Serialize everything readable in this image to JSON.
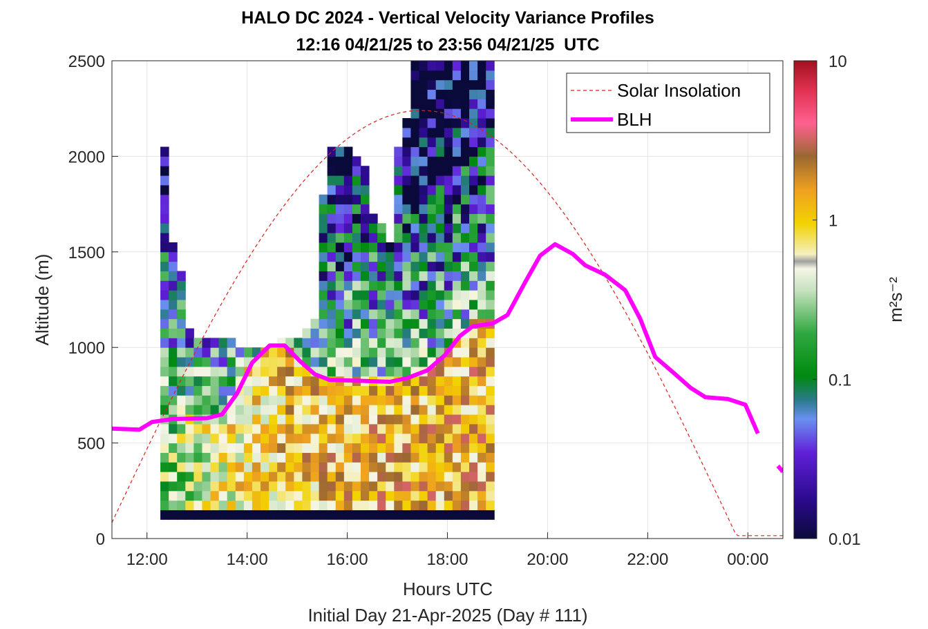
{
  "chart_data": {
    "type": "heatmap",
    "title": "HALO DC 2024 - Vertical Velocity Variance Profiles",
    "subtitle": "12:16 04/21/25 to 23:56 04/21/25  UTC",
    "xlabel": "Hours UTC",
    "xlabel2": "Initial Day 21-Apr-2025 (Day # 111)",
    "ylabel": "Altitude (m)",
    "xlim": [
      11.3,
      24.7
    ],
    "ylim": [
      0,
      2500
    ],
    "x_ticks": [
      12,
      14,
      16,
      18,
      20,
      22,
      24
    ],
    "x_tick_labels": [
      "12:00",
      "14:00",
      "16:00",
      "18:00",
      "20:00",
      "22:00",
      "00:00"
    ],
    "y_ticks": [
      0,
      500,
      1000,
      1500,
      2000,
      2500
    ],
    "y_tick_labels": [
      "0",
      "500",
      "1000",
      "1500",
      "2000",
      "2500"
    ],
    "grid": true,
    "legend_position": "top-right",
    "legend": [
      "Solar Insolation",
      "BLH"
    ],
    "colorbar": {
      "label": "m²s⁻²",
      "scale": "log",
      "range": [
        0.01,
        10
      ],
      "tick_labels": [
        "0.01",
        "0.1",
        "1",
        "10"
      ],
      "tick_values": [
        0.01,
        0.1,
        1,
        10
      ]
    },
    "grid_cells": {
      "x_start_hours": 12.267,
      "x_step_hours": 0.1667,
      "y_step_m": 50,
      "columns": [
        {
          "bottom": 100,
          "top": 2050
        },
        {
          "bottom": 100,
          "top": 1550
        },
        {
          "bottom": 100,
          "top": 1400
        },
        {
          "bottom": 100,
          "top": 1100
        },
        {
          "bottom": 100,
          "top": 1050
        },
        {
          "bottom": 100,
          "top": 1050
        },
        {
          "bottom": 100,
          "top": 1050
        },
        {
          "bottom": 100,
          "top": 1050
        },
        {
          "bottom": 100,
          "top": 1050
        },
        {
          "bottom": 100,
          "top": 1000
        },
        {
          "bottom": 100,
          "top": 1000
        },
        {
          "bottom": 100,
          "top": 1000
        },
        {
          "bottom": 100,
          "top": 1000
        },
        {
          "bottom": 100,
          "top": 1000
        },
        {
          "bottom": 100,
          "top": 1050
        },
        {
          "bottom": 100,
          "top": 1050
        },
        {
          "bottom": 100,
          "top": 1050
        },
        {
          "bottom": 100,
          "top": 1100
        },
        {
          "bottom": 100,
          "top": 1150
        },
        {
          "bottom": 100,
          "top": 1800
        },
        {
          "bottom": 100,
          "top": 2050
        },
        {
          "bottom": 100,
          "top": 2050
        },
        {
          "bottom": 100,
          "top": 2050
        },
        {
          "bottom": 100,
          "top": 2000
        },
        {
          "bottom": 100,
          "top": 1950
        },
        {
          "bottom": 100,
          "top": 1700
        },
        {
          "bottom": 100,
          "top": 1650
        },
        {
          "bottom": 100,
          "top": 1550
        },
        {
          "bottom": 100,
          "top": 2050
        },
        {
          "bottom": 100,
          "top": 2200
        },
        {
          "bottom": 100,
          "top": 2500
        },
        {
          "bottom": 100,
          "top": 2500
        },
        {
          "bottom": 100,
          "top": 2500
        },
        {
          "bottom": 100,
          "top": 2500
        },
        {
          "bottom": 100,
          "top": 2500
        },
        {
          "bottom": 100,
          "top": 2500
        },
        {
          "bottom": 100,
          "top": 2500
        },
        {
          "bottom": 100,
          "top": 2500
        },
        {
          "bottom": 100,
          "top": 2500
        },
        {
          "bottom": 100,
          "top": 2500
        }
      ],
      "lowest_gate_value": 0.01,
      "upper_column_values_right_side": 0.02
    },
    "series": [
      {
        "name": "BLH",
        "color": "#ff00ff",
        "segments": [
          [
            [
              11.3,
              575
            ],
            [
              11.85,
              570
            ],
            [
              12.1,
              610
            ],
            [
              12.5,
              625
            ],
            [
              13.2,
              630
            ],
            [
              13.5,
              650
            ],
            [
              13.8,
              760
            ],
            [
              14.1,
              920
            ],
            [
              14.45,
              1010
            ],
            [
              14.75,
              1010
            ],
            [
              15.05,
              930
            ],
            [
              15.35,
              860
            ],
            [
              15.65,
              830
            ],
            [
              16.3,
              825
            ],
            [
              16.85,
              820
            ],
            [
              17.2,
              840
            ],
            [
              17.6,
              880
            ],
            [
              17.95,
              960
            ],
            [
              18.25,
              1060
            ],
            [
              18.5,
              1110
            ],
            [
              18.9,
              1125
            ],
            [
              19.2,
              1170
            ],
            [
              19.55,
              1340
            ],
            [
              19.85,
              1480
            ],
            [
              20.15,
              1540
            ],
            [
              20.5,
              1490
            ],
            [
              20.75,
              1430
            ],
            [
              21.15,
              1380
            ],
            [
              21.55,
              1300
            ],
            [
              21.85,
              1150
            ],
            [
              22.15,
              950
            ],
            [
              22.55,
              860
            ],
            [
              22.85,
              790
            ],
            [
              23.15,
              740
            ],
            [
              23.6,
              730
            ],
            [
              23.95,
              700
            ],
            [
              24.2,
              550
            ]
          ],
          [
            [
              24.6,
              380
            ],
            [
              24.7,
              350
            ]
          ]
        ]
      },
      {
        "name": "Solar Insolation",
        "color": "#d62020",
        "style": "dashed",
        "shape": "sine",
        "zero_hours": [
          11.15,
          23.8
        ],
        "peak_hour": 17.13,
        "peak_altitude_m": 2240,
        "flat_after_hours": [
          23.8,
          24.7
        ],
        "flat_altitude_m": 15
      }
    ]
  }
}
